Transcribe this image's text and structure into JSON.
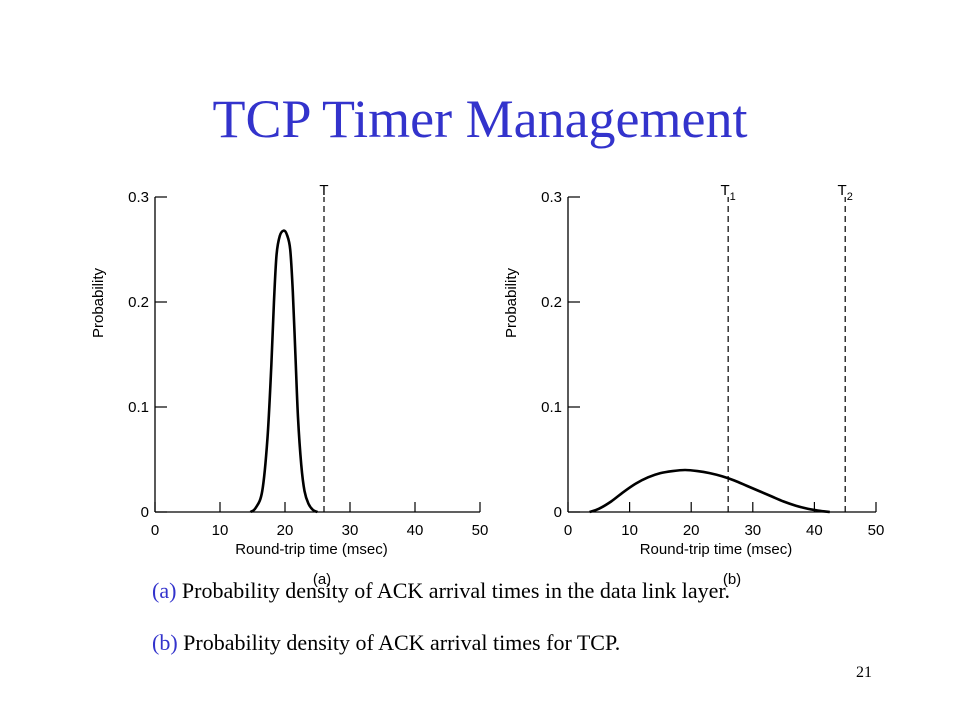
{
  "slide": {
    "title": "TCP Timer Management",
    "caption_a_tag": "(a)",
    "caption_a_text": "Probability density of ACK arrival times in the data link layer.",
    "caption_b_tag": "(b)",
    "caption_b_text": "Probability density of  ACK arrival times for TCP.",
    "page_number": "21"
  },
  "chart_data": [
    {
      "type": "line",
      "panel_label": "(a)",
      "xlabel": "Round-trip time (msec)",
      "ylabel": "Probability",
      "xlim": [
        0,
        50
      ],
      "ylim": [
        0,
        0.3
      ],
      "xticks": [
        0,
        10,
        20,
        30,
        40,
        50
      ],
      "yticks": [
        0,
        0.1,
        0.2,
        0.3
      ],
      "ytick_labels": [
        "0",
        "0.1",
        "0.2",
        "0.3"
      ],
      "grid": false,
      "series": [
        {
          "x": [
            14.7,
            15.5,
            16.5,
            17.3,
            17.9,
            18.3,
            18.7,
            19.2,
            19.8,
            20.3,
            20.8,
            21.2,
            21.6,
            22.0,
            22.5,
            23.0,
            23.6,
            24.3,
            25.0
          ],
          "y": [
            0,
            0.004,
            0.02,
            0.07,
            0.14,
            0.2,
            0.245,
            0.263,
            0.268,
            0.264,
            0.25,
            0.21,
            0.15,
            0.09,
            0.045,
            0.02,
            0.008,
            0.002,
            0
          ]
        }
      ],
      "vlines": [
        {
          "x": 26,
          "label": "T"
        }
      ]
    },
    {
      "type": "line",
      "panel_label": "(b)",
      "xlabel": "Round-trip time (msec)",
      "ylabel": "Probability",
      "xlim": [
        0,
        50
      ],
      "ylim": [
        0,
        0.3
      ],
      "xticks": [
        0,
        10,
        20,
        30,
        40,
        50
      ],
      "yticks": [
        0,
        0.1,
        0.2,
        0.3
      ],
      "ytick_labels": [
        "0",
        "0.1",
        "0.2",
        "0.3"
      ],
      "grid": false,
      "series": [
        {
          "x": [
            3.5,
            5,
            7,
            9,
            11,
            13,
            15,
            17,
            19,
            21,
            23,
            25,
            27,
            29,
            31,
            33,
            35,
            37,
            39,
            41,
            42.5
          ],
          "y": [
            0,
            0.003,
            0.01,
            0.019,
            0.027,
            0.033,
            0.037,
            0.039,
            0.04,
            0.039,
            0.037,
            0.034,
            0.03,
            0.025,
            0.02,
            0.015,
            0.01,
            0.006,
            0.003,
            0.001,
            0
          ]
        }
      ],
      "vlines": [
        {
          "x": 26,
          "label": "T1"
        },
        {
          "x": 45,
          "label": "T2"
        }
      ]
    }
  ]
}
